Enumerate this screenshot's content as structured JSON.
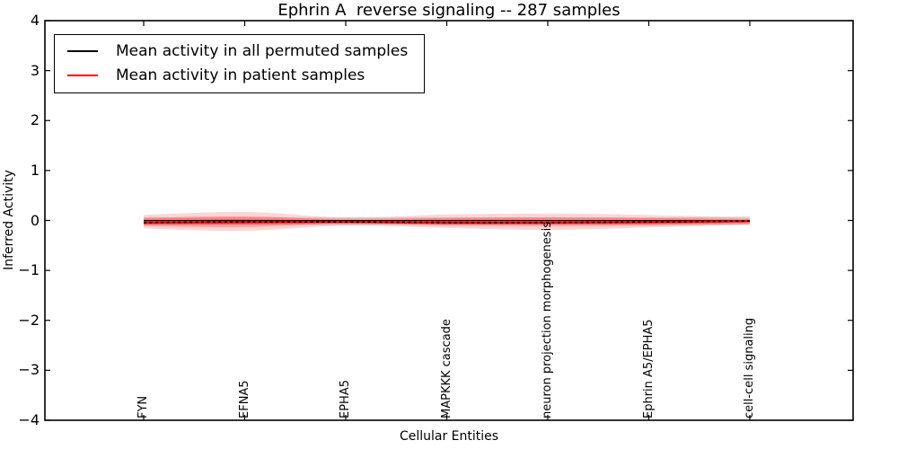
{
  "chart_data": {
    "type": "line",
    "title": "Ephrin A  reverse signaling -- 287 samples",
    "xlabel": "Cellular Entities",
    "ylabel": "Inferred Activity",
    "ylim": [
      -4,
      4
    ],
    "yticks": [
      4,
      3,
      2,
      1,
      0,
      -1,
      -2,
      -3,
      -4
    ],
    "ytick_labels": [
      "4",
      "3",
      "2",
      "1",
      "0",
      "−1",
      "−2",
      "−3",
      "−4"
    ],
    "grid": false,
    "legend_position": "upper left",
    "categories": [
      "FYN",
      "EFNA5",
      "EPHA5",
      "MAPKKK cascade",
      "neuron projection morphogenesis",
      "Ephrin A5/EPHA5",
      "cell-cell signaling"
    ],
    "series": [
      {
        "name": "Mean activity in all permuted samples",
        "color": "#000000",
        "values": [
          0,
          0,
          0,
          0,
          0,
          0,
          0
        ],
        "band": {
          "upper": [
            0.06,
            0.06,
            0.06,
            0.06,
            0.06,
            0.06,
            0.08
          ],
          "lower": [
            -0.09,
            -0.08,
            -0.1,
            -0.08,
            -0.08,
            -0.08,
            -0.1
          ],
          "color": "rgba(125,125,125,0.25)"
        }
      },
      {
        "name": "Mean activity in patient samples",
        "color": "#ff0000",
        "values": [
          -0.04,
          -0.03,
          -0.03,
          -0.04,
          -0.04,
          -0.03,
          -0.01
        ],
        "bands": [
          {
            "upper": [
              0.11,
              0.17,
              0.06,
              0.12,
              0.14,
              0.11,
              0.05
            ],
            "lower": [
              -0.16,
              -0.21,
              -0.1,
              -0.15,
              -0.19,
              -0.14,
              -0.08
            ],
            "color": "rgba(255,0,0,0.16)"
          },
          {
            "upper": [
              0.05,
              0.08,
              0.02,
              0.05,
              0.06,
              0.05,
              0.02
            ],
            "lower": [
              -0.11,
              -0.13,
              -0.06,
              -0.1,
              -0.11,
              -0.1,
              -0.06
            ],
            "color": "rgba(255,0,0,0.25)"
          },
          {
            "upper": [
              0.01,
              0.02,
              0.0,
              0.01,
              0.01,
              0.01,
              0.01
            ],
            "lower": [
              -0.08,
              -0.08,
              -0.05,
              -0.08,
              -0.08,
              -0.07,
              -0.04
            ],
            "color": "rgba(255,0,0,0.35)"
          }
        ]
      }
    ]
  }
}
